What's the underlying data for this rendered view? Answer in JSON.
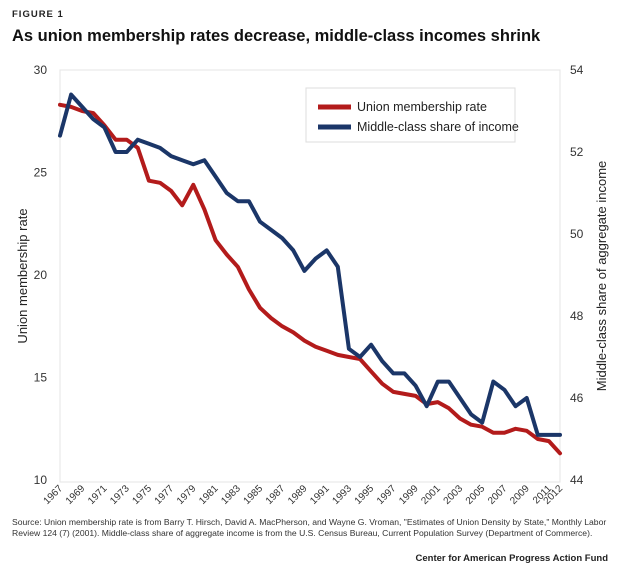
{
  "figure_label": "FIGURE 1",
  "source_note": "Source: Union membership rate is from Barry T. Hirsch, David A. MacPherson, and Wayne G. Vroman, \"Estimates of Union Density by State,\" Monthly Labor Review 124 (7) (2001). Middle-class share of aggregate income is from the U.S. Census Bureau, Current Population Survey (Department of Commerce).",
  "credit": "Center for American Progress Action Fund",
  "colors": {
    "union": "#b31b1b",
    "middle_class": "#1b3668"
  },
  "chart_data": {
    "type": "line",
    "title": "As union membership rates decrease, middle-class incomes shrink",
    "xlabel": "",
    "ylabel": "Union membership rate",
    "ylabel_right": "Middle-class share of aggregate income",
    "ylim": [
      10,
      30
    ],
    "ylim_right": [
      44,
      54
    ],
    "yticks": [
      10,
      15,
      20,
      25,
      30
    ],
    "yticks_right": [
      44,
      46,
      48,
      50,
      52,
      54
    ],
    "x_tick_labels": [
      "1967",
      "1969",
      "1971",
      "1973",
      "1975",
      "1977",
      "1979",
      "1981",
      "1983",
      "1985",
      "1987",
      "1989",
      "1991",
      "1993",
      "1995",
      "1997",
      "1999",
      "2001",
      "2003",
      "2005",
      "2007",
      "2009",
      "2011",
      "2012"
    ],
    "x": [
      1967,
      1968,
      1969,
      1970,
      1971,
      1972,
      1973,
      1974,
      1975,
      1976,
      1977,
      1978,
      1979,
      1980,
      1981,
      1982,
      1983,
      1984,
      1985,
      1986,
      1987,
      1988,
      1989,
      1990,
      1991,
      1992,
      1993,
      1994,
      1995,
      1996,
      1997,
      1998,
      1999,
      2000,
      2001,
      2002,
      2003,
      2004,
      2005,
      2006,
      2007,
      2008,
      2009,
      2010,
      2011,
      2012
    ],
    "legend_position": "top-right",
    "series": [
      {
        "name": "Union membership rate",
        "axis": "left",
        "color": "#b31b1b",
        "values": [
          28.3,
          28.2,
          28.0,
          27.9,
          27.3,
          26.6,
          26.6,
          26.2,
          24.6,
          24.5,
          24.1,
          23.4,
          24.4,
          23.2,
          21.7,
          21.0,
          20.4,
          19.3,
          18.4,
          17.9,
          17.5,
          17.2,
          16.8,
          16.5,
          16.3,
          16.1,
          16.0,
          15.9,
          15.3,
          14.7,
          14.3,
          14.2,
          14.1,
          13.7,
          13.8,
          13.5,
          13.0,
          12.7,
          12.6,
          12.3,
          12.3,
          12.5,
          12.4,
          12.0,
          11.9,
          11.3
        ]
      },
      {
        "name": "Middle-class share of income",
        "axis": "right",
        "color": "#1b3668",
        "values": [
          52.4,
          53.4,
          53.1,
          52.8,
          52.6,
          52.0,
          52.0,
          52.3,
          52.2,
          52.1,
          51.9,
          51.8,
          51.7,
          51.8,
          51.4,
          51.0,
          50.8,
          50.8,
          50.3,
          50.1,
          49.9,
          49.6,
          49.1,
          49.4,
          49.6,
          49.2,
          47.2,
          47.0,
          47.3,
          46.9,
          46.6,
          46.6,
          46.3,
          45.8,
          46.4,
          46.4,
          46.0,
          45.6,
          45.4,
          46.4,
          46.2,
          45.8,
          46.0,
          45.1,
          45.1,
          45.1
        ]
      }
    ]
  }
}
